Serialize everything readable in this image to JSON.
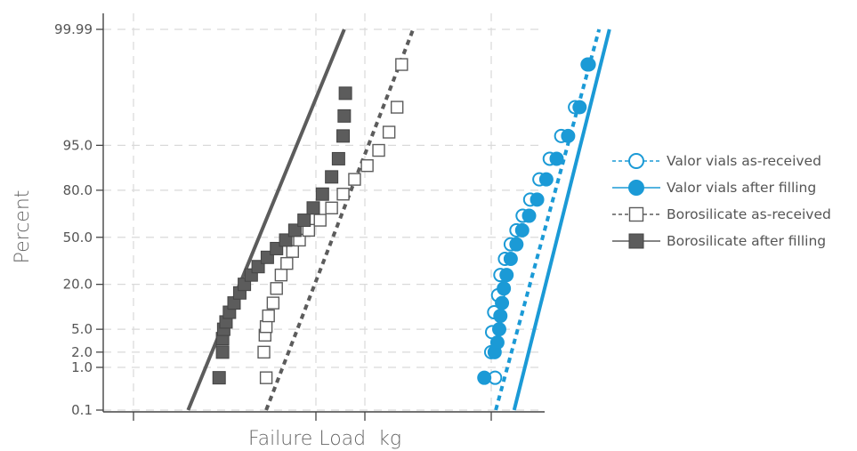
{
  "chart_data": {
    "type": "scatter",
    "subtype": "probability-plot",
    "title": "",
    "xlabel": "Failure Load  kg",
    "ylabel": "Percent",
    "y_scale": "normal-probability",
    "ylim": [
      0.1,
      99.99
    ],
    "x_tick_labels": [],
    "y_ticks": [
      {
        "value": 0.1,
        "label": "0.1"
      },
      {
        "value": 1.0,
        "label": "1.0"
      },
      {
        "value": 2.0,
        "label": "2.0"
      },
      {
        "value": 5.0,
        "label": "5.0"
      },
      {
        "value": 20.0,
        "label": "20.0"
      },
      {
        "value": 50.0,
        "label": "50.0"
      },
      {
        "value": 80.0,
        "label": "80.0"
      },
      {
        "value": 95.0,
        "label": "95.0"
      },
      {
        "value": 99.99,
        "label": "99.99"
      }
    ],
    "grid": true,
    "legend_position": "right",
    "series": [
      {
        "name": "Valor vials as-received",
        "color": "#1b9ad6",
        "marker": "open-circle",
        "line": "dotted",
        "fit_x": [
          0.795,
          1.245
        ],
        "points": [
          [
            0.792,
            0.6
          ],
          [
            0.775,
            2.0
          ],
          [
            0.779,
            4.5
          ],
          [
            0.788,
            9.0
          ],
          [
            0.805,
            15.0
          ],
          [
            0.815,
            25.0
          ],
          [
            0.835,
            35.0
          ],
          [
            0.86,
            45.0
          ],
          [
            0.885,
            55.0
          ],
          [
            0.912,
            65.0
          ],
          [
            0.945,
            75.0
          ],
          [
            0.985,
            85.0
          ],
          [
            1.03,
            92.0
          ],
          [
            1.08,
            96.5
          ],
          [
            1.14,
            99.0
          ],
          [
            1.195,
            99.9
          ]
        ]
      },
      {
        "name": "Valor vials after filling",
        "color": "#1b9ad6",
        "marker": "filled-circle",
        "line": "solid",
        "fit_x": [
          0.875,
          1.29
        ],
        "points": [
          [
            0.745,
            0.6
          ],
          [
            0.79,
            2.0
          ],
          [
            0.802,
            3.0
          ],
          [
            0.81,
            5.0
          ],
          [
            0.815,
            8.0
          ],
          [
            0.822,
            12.0
          ],
          [
            0.83,
            18.0
          ],
          [
            0.842,
            25.0
          ],
          [
            0.86,
            35.0
          ],
          [
            0.885,
            45.0
          ],
          [
            0.91,
            55.0
          ],
          [
            0.94,
            65.0
          ],
          [
            0.975,
            75.0
          ],
          [
            1.015,
            85.0
          ],
          [
            1.06,
            92.0
          ],
          [
            1.11,
            96.5
          ],
          [
            1.16,
            99.0
          ],
          [
            1.2,
            99.9
          ]
        ]
      },
      {
        "name": "Borosilicate as-received",
        "color": "#5c5c5c",
        "marker": "open-square",
        "line": "dotted",
        "fit_x": [
          -0.205,
          0.435
        ],
        "points": [
          [
            -0.205,
            0.6
          ],
          [
            -0.215,
            2.0
          ],
          [
            -0.21,
            4.0
          ],
          [
            -0.205,
            5.5
          ],
          [
            -0.195,
            8.0
          ],
          [
            -0.175,
            12.0
          ],
          [
            -0.16,
            18.0
          ],
          [
            -0.14,
            25.0
          ],
          [
            -0.115,
            32.0
          ],
          [
            -0.09,
            40.0
          ],
          [
            -0.06,
            48.0
          ],
          [
            -0.02,
            55.0
          ],
          [
            0.03,
            62.0
          ],
          [
            0.08,
            70.0
          ],
          [
            0.13,
            78.0
          ],
          [
            0.18,
            85.0
          ],
          [
            0.235,
            90.0
          ],
          [
            0.285,
            94.0
          ],
          [
            0.33,
            97.0
          ],
          [
            0.365,
            99.0
          ],
          [
            0.385,
            99.9
          ]
        ]
      },
      {
        "name": "Borosilicate after filling",
        "color": "#5c5c5c",
        "marker": "filled-square",
        "line": "solid",
        "fit_x": [
          -0.545,
          0.135
        ],
        "points": [
          [
            -0.41,
            0.6
          ],
          [
            -0.395,
            2.0
          ],
          [
            -0.395,
            3.5
          ],
          [
            -0.39,
            5.0
          ],
          [
            -0.38,
            6.5
          ],
          [
            -0.365,
            9.0
          ],
          [
            -0.345,
            12.0
          ],
          [
            -0.32,
            16.0
          ],
          [
            -0.3,
            20.0
          ],
          [
            -0.27,
            25.0
          ],
          [
            -0.24,
            30.0
          ],
          [
            -0.2,
            36.0
          ],
          [
            -0.16,
            42.0
          ],
          [
            -0.12,
            48.0
          ],
          [
            -0.08,
            55.0
          ],
          [
            -0.04,
            62.0
          ],
          [
            0.0,
            70.0
          ],
          [
            0.04,
            78.0
          ],
          [
            0.08,
            86.0
          ],
          [
            0.11,
            92.0
          ],
          [
            0.13,
            96.5
          ],
          [
            0.135,
            98.5
          ],
          [
            0.14,
            99.5
          ]
        ]
      }
    ]
  }
}
